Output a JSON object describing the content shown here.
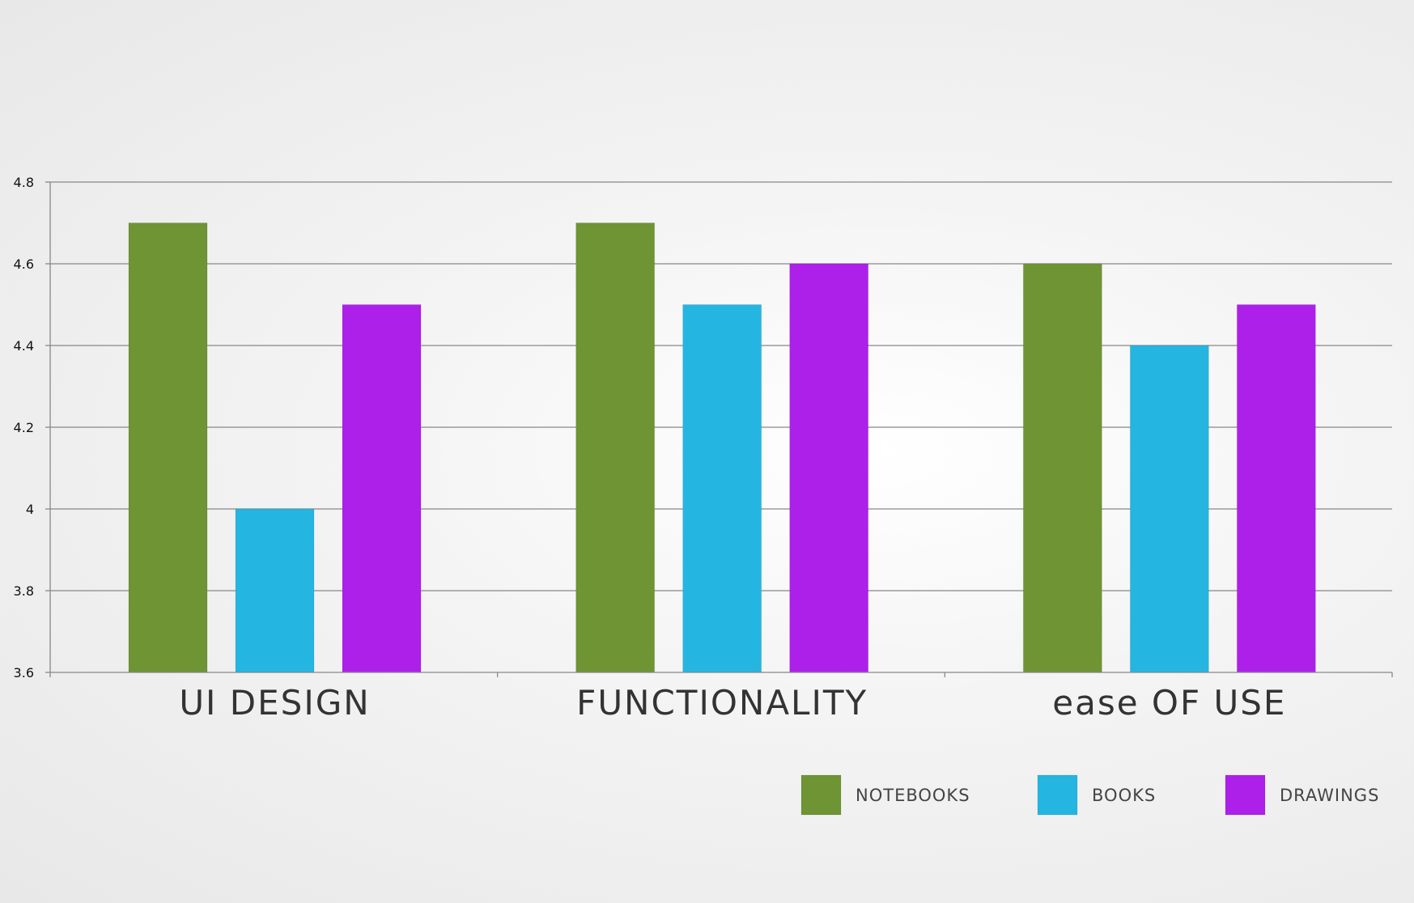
{
  "chart_data": {
    "type": "bar",
    "categories": [
      "UI DESIGN",
      "FUNCTIONALITY",
      "ease OF USE"
    ],
    "series": [
      {
        "name": "NOTEBOOKS",
        "values": [
          4.7,
          4.7,
          4.6
        ],
        "color": "#6f9434"
      },
      {
        "name": "BOOKS",
        "values": [
          4.0,
          4.5,
          4.4
        ],
        "color": "#24b6e0"
      },
      {
        "name": "DRAWINGS",
        "values": [
          4.5,
          4.6,
          4.5
        ],
        "color": "#ad20ea"
      }
    ],
    "ylim": [
      3.6,
      4.8
    ],
    "yticks": [
      3.6,
      3.8,
      4,
      4.2,
      4.4,
      4.6,
      4.8
    ],
    "ytick_labels": [
      "3.6",
      "3.8",
      "4",
      "4.2",
      "4.4",
      "4.6",
      "4.8"
    ],
    "grid": true,
    "legend": "bottom-right",
    "gridline_color": "#888888",
    "axis_color": "#888888"
  }
}
